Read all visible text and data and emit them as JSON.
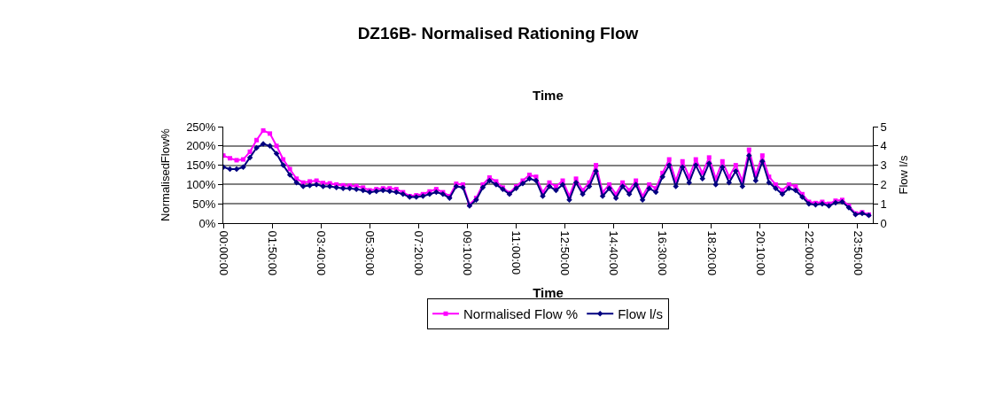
{
  "chart_data": {
    "type": "line",
    "title": "DZ16B- Normalised Rationing Flow",
    "subtitle": "Time",
    "xlabel": "Time",
    "ylabel": "NormalisedFlow%",
    "y2label": "Flow l/s",
    "x": [
      0,
      0.25,
      0.5,
      0.75,
      1,
      1.25,
      1.5,
      1.75,
      2,
      2.25,
      2.5,
      2.75,
      3,
      3.25,
      3.5,
      3.75,
      4,
      4.25,
      4.5,
      4.75,
      5,
      5.25,
      5.5,
      5.75,
      6,
      6.25,
      6.5,
      6.75,
      7,
      7.25,
      7.5,
      7.75,
      8,
      8.25,
      8.5,
      8.75,
      9,
      9.25,
      9.5,
      9.75,
      10,
      10.25,
      10.5,
      10.75,
      11,
      11.25,
      11.5,
      11.75,
      12,
      12.25,
      12.5,
      12.75,
      13,
      13.25,
      13.5,
      13.75,
      14,
      14.25,
      14.5,
      14.75,
      15,
      15.25,
      15.5,
      15.75,
      16,
      16.25,
      16.5,
      16.75,
      17,
      17.25,
      17.5,
      17.75,
      18,
      18.25,
      18.5,
      18.75,
      19,
      19.25,
      19.5,
      19.75,
      20,
      20.25,
      20.5,
      20.75,
      21,
      21.25,
      21.5,
      21.75,
      22,
      22.25,
      22.5,
      22.75,
      23,
      23.25,
      23.5,
      23.75,
      24,
      24.25
    ],
    "series": [
      {
        "name": "Normalised Flow %",
        "color": "#ff00ff",
        "marker": "square",
        "values": [
          175,
          168,
          163,
          165,
          185,
          215,
          240,
          232,
          200,
          165,
          140,
          115,
          105,
          108,
          110,
          104,
          103,
          100,
          98,
          97,
          96,
          92,
          85,
          88,
          90,
          90,
          88,
          80,
          70,
          72,
          75,
          82,
          88,
          80,
          70,
          102,
          100,
          48,
          65,
          100,
          118,
          108,
          92,
          78,
          95,
          110,
          125,
          120,
          80,
          105,
          95,
          110,
          70,
          115,
          85,
          105,
          150,
          80,
          100,
          75,
          105,
          85,
          110,
          70,
          100,
          90,
          130,
          165,
          110,
          160,
          120,
          165,
          130,
          170,
          115,
          160,
          120,
          150,
          110,
          190,
          125,
          175,
          120,
          100,
          85,
          100,
          95,
          75,
          55,
          52,
          55,
          50,
          58,
          60,
          45,
          25,
          28,
          22
        ]
      },
      {
        "name": "Flow l/s",
        "color": "#000080",
        "marker": "diamond",
        "axis": "y2",
        "values": [
          2.9,
          2.8,
          2.8,
          2.9,
          3.4,
          3.9,
          4.1,
          4.0,
          3.6,
          3.0,
          2.5,
          2.1,
          1.9,
          1.95,
          2.0,
          1.9,
          1.9,
          1.85,
          1.8,
          1.8,
          1.75,
          1.7,
          1.6,
          1.65,
          1.7,
          1.65,
          1.6,
          1.5,
          1.35,
          1.35,
          1.4,
          1.5,
          1.6,
          1.5,
          1.3,
          1.9,
          1.85,
          0.9,
          1.2,
          1.85,
          2.2,
          2.0,
          1.75,
          1.5,
          1.8,
          2.05,
          2.3,
          2.2,
          1.4,
          1.9,
          1.7,
          2.0,
          1.2,
          2.1,
          1.5,
          1.9,
          2.7,
          1.4,
          1.8,
          1.3,
          1.9,
          1.5,
          2.0,
          1.2,
          1.8,
          1.6,
          2.4,
          3.0,
          1.9,
          2.9,
          2.1,
          3.0,
          2.3,
          3.1,
          2.0,
          2.9,
          2.1,
          2.7,
          1.9,
          3.5,
          2.2,
          3.2,
          2.1,
          1.8,
          1.5,
          1.8,
          1.7,
          1.35,
          1.0,
          0.95,
          1.0,
          0.9,
          1.05,
          1.1,
          0.8,
          0.45,
          0.5,
          0.4
        ]
      }
    ],
    "xlim": [
      0,
      24.4
    ],
    "xticks": [
      {
        "value": 0,
        "label": "00:00:00"
      },
      {
        "value": 1.8333,
        "label": "01:50:00"
      },
      {
        "value": 3.6667,
        "label": "03:40:00"
      },
      {
        "value": 5.5,
        "label": "05:30:00"
      },
      {
        "value": 7.3333,
        "label": "07:20:00"
      },
      {
        "value": 9.1667,
        "label": "09:10:00"
      },
      {
        "value": 11,
        "label": "11:00:00"
      },
      {
        "value": 12.8333,
        "label": "12:50:00"
      },
      {
        "value": 14.6667,
        "label": "14:40:00"
      },
      {
        "value": 16.5,
        "label": "16:30:00"
      },
      {
        "value": 18.3333,
        "label": "18:20:00"
      },
      {
        "value": 20.1667,
        "label": "20:10:00"
      },
      {
        "value": 22,
        "label": "22:00:00"
      },
      {
        "value": 23.8333,
        "label": "23:50:00"
      }
    ],
    "ylim": [
      0,
      250
    ],
    "yticks": [
      {
        "value": 0,
        "label": "0%"
      },
      {
        "value": 50,
        "label": "50%"
      },
      {
        "value": 100,
        "label": "100%"
      },
      {
        "value": 150,
        "label": "150%"
      },
      {
        "value": 200,
        "label": "200%"
      },
      {
        "value": 250,
        "label": "250%"
      }
    ],
    "y2lim": [
      0,
      5
    ],
    "y2ticks": [
      0,
      1,
      2,
      3,
      4,
      5
    ],
    "grid": "y",
    "legend": "bottom",
    "line_style": "solid"
  }
}
